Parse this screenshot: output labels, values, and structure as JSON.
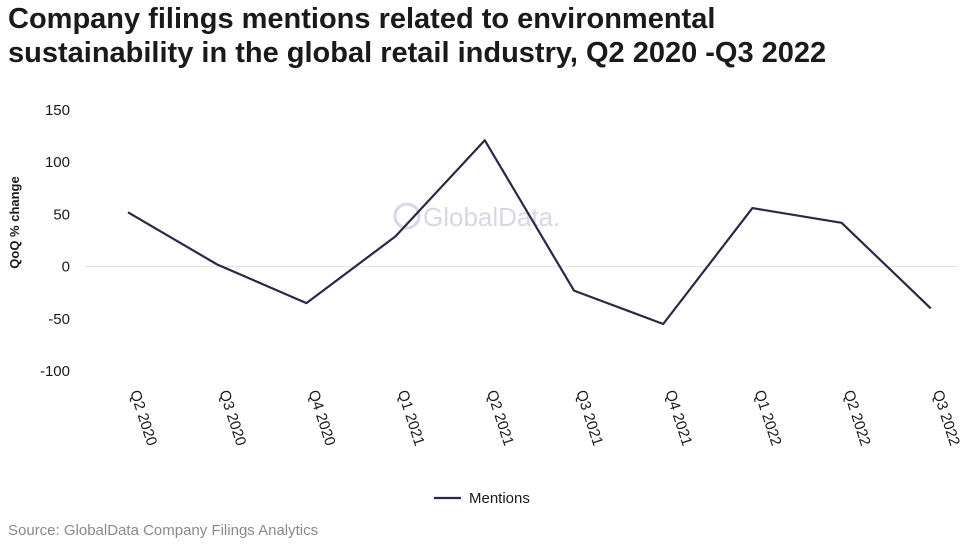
{
  "title_lines": [
    "Company filings mentions related to environmental",
    "sustainability in the global retail industry, Q2 2020 -Q3 2022"
  ],
  "watermark": "GlobalData.",
  "source": "Source: GlobalData Company Filings Analytics",
  "colors": {
    "line": "#2b2845",
    "zero_line": "#e0e0e0",
    "watermark": "#b9b6d4",
    "text": "#1a1a1a",
    "source": "#8a8a8a"
  },
  "chart_data": {
    "type": "line",
    "title": "Company filings mentions related to environmental sustainability in the global retail industry, Q2 2020 -Q3 2022",
    "xlabel": "",
    "ylabel": "QoQ % change",
    "ylim": [
      -100,
      150
    ],
    "yticks": [
      150,
      100,
      50,
      0,
      -50,
      -100
    ],
    "grid": false,
    "legend_position": "bottom-center",
    "categories": [
      "Q2 2020",
      "Q3 2020",
      "Q4 2020",
      "Q1 2021",
      "Q2 2021",
      "Q3 2021",
      "Q4 2021",
      "Q1 2022",
      "Q2 2022",
      "Q3 2022"
    ],
    "series": [
      {
        "name": "Mentions",
        "values": [
          52,
          2,
          -35,
          29,
          121,
          -23,
          -55,
          56,
          42,
          -40
        ]
      }
    ]
  }
}
